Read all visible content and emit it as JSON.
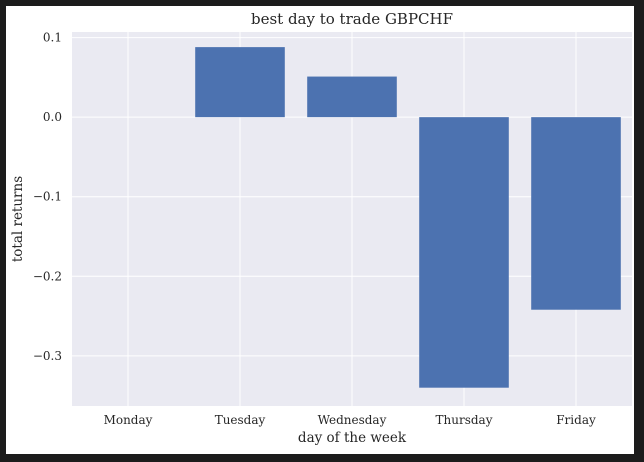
{
  "chart_data": {
    "type": "bar",
    "title": "best day to trade GBPCHF",
    "xlabel": "day of the week",
    "ylabel": "total returns",
    "categories": [
      "Monday",
      "Tuesday",
      "Wednesday",
      "Thursday",
      "Friday"
    ],
    "values": [
      0.0,
      0.088,
      0.051,
      -0.34,
      -0.242
    ],
    "ylim": [
      -0.363,
      0.107
    ],
    "yticks": [
      0.1,
      0.0,
      -0.1,
      -0.2,
      -0.3
    ],
    "ytick_labels": [
      "0.1",
      "0.0",
      "−0.1",
      "−0.2",
      "−0.3"
    ],
    "grid": true,
    "bar_color": "#4c72b0",
    "plot_background": "#eaeaf2",
    "grid_color": "#ffffff"
  }
}
